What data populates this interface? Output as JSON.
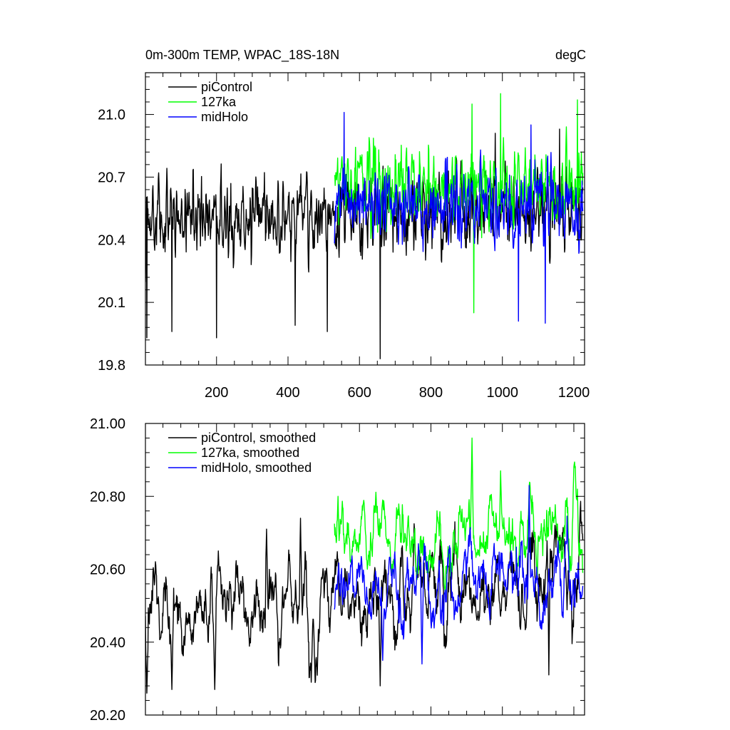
{
  "colors": {
    "piControl": "#000000",
    "127ka": "#00ff00",
    "midHolo": "#0000ff",
    "frame": "#000000",
    "background": "#ffffff"
  },
  "chart_data": [
    {
      "type": "line",
      "title_left": "0m-300m TEMP, WPAC_18S-18N",
      "title_right": "degC",
      "xlabel": "",
      "ylabel": "",
      "xlim": [
        1,
        1230
      ],
      "ylim": [
        19.8,
        21.2
      ],
      "xticks": [
        200,
        400,
        600,
        800,
        1000,
        1200
      ],
      "xtick_labels": [
        "200",
        "400",
        "600",
        "800",
        "1000",
        "1200"
      ],
      "yticks": [
        19.8,
        20.1,
        20.4,
        20.7,
        21.0
      ],
      "ytick_labels": [
        "19.8",
        "20.1",
        "20.4",
        "20.7",
        "21.0"
      ],
      "grid": false,
      "legend_position": "top-left",
      "series": [
        {
          "name": "piControl",
          "color_key": "piControl",
          "x_start": 1,
          "x_end": 1225,
          "mean": 20.5,
          "trend_per_year": 5e-05,
          "noise_sd": 0.17,
          "features": [
            {
              "x": 5,
              "y": 19.93
            },
            {
              "x": 75,
              "y": 19.96
            },
            {
              "x": 200,
              "y": 19.93
            },
            {
              "x": 420,
              "y": 19.99
            },
            {
              "x": 510,
              "y": 19.96
            },
            {
              "x": 658,
              "y": 19.83
            },
            {
              "x": 980,
              "y": 20.91
            },
            {
              "x": 1160,
              "y": 20.93
            }
          ]
        },
        {
          "name": "127ka",
          "color_key": "127ka",
          "x_start": 530,
          "x_end": 1225,
          "mean": 20.66,
          "trend_per_year": 0.0,
          "noise_sd": 0.16,
          "features": [
            {
              "x": 995,
              "y": 21.1
            },
            {
              "x": 1210,
              "y": 21.07
            },
            {
              "x": 915,
              "y": 21.05
            },
            {
              "x": 920,
              "y": 20.05
            }
          ]
        },
        {
          "name": "midHolo",
          "color_key": "midHolo",
          "x_start": 530,
          "x_end": 1225,
          "mean": 20.56,
          "trend_per_year": 0.0,
          "noise_sd": 0.16,
          "features": [
            {
              "x": 557,
              "y": 21.01
            },
            {
              "x": 1080,
              "y": 20.95
            },
            {
              "x": 1045,
              "y": 20.01
            },
            {
              "x": 1120,
              "y": 20.0
            }
          ]
        }
      ]
    },
    {
      "type": "line",
      "title_left": "",
      "title_right": "",
      "xlabel": "",
      "ylabel": "",
      "xlim": [
        1,
        1230
      ],
      "ylim": [
        20.2,
        21.0
      ],
      "xticks": [
        200,
        400,
        600,
        800,
        1000,
        1200
      ],
      "xtick_labels": [],
      "yticks": [
        20.2,
        20.4,
        20.6,
        20.8,
        21.0
      ],
      "ytick_labels": [
        "20.20",
        "20.40",
        "20.60",
        "20.80",
        "21.00"
      ],
      "grid": false,
      "legend_position": "top-left",
      "series": [
        {
          "name": "piControl, smoothed",
          "color_key": "piControl",
          "x_start": 1,
          "x_end": 1225,
          "mean": 20.49,
          "trend_per_year": 9e-05,
          "noise_sd": 0.07,
          "features": [
            {
              "x": 5,
              "y": 20.26
            },
            {
              "x": 75,
              "y": 20.27
            },
            {
              "x": 195,
              "y": 20.27
            },
            {
              "x": 340,
              "y": 20.71
            },
            {
              "x": 435,
              "y": 20.74
            },
            {
              "x": 465,
              "y": 20.29
            },
            {
              "x": 658,
              "y": 20.28
            },
            {
              "x": 1130,
              "y": 20.31
            }
          ]
        },
        {
          "name": "127ka, smoothed",
          "color_key": "127ka",
          "x_start": 530,
          "x_end": 1225,
          "mean": 20.66,
          "trend_per_year": 6e-05,
          "noise_sd": 0.06,
          "features": [
            {
              "x": 915,
              "y": 20.96
            },
            {
              "x": 995,
              "y": 20.87
            },
            {
              "x": 540,
              "y": 20.8
            },
            {
              "x": 1210,
              "y": 20.82
            }
          ]
        },
        {
          "name": "midHolo, smoothed",
          "color_key": "midHolo",
          "x_start": 530,
          "x_end": 1225,
          "mean": 20.56,
          "trend_per_year": 2e-05,
          "noise_sd": 0.06,
          "features": [
            {
              "x": 1075,
              "y": 20.83
            },
            {
              "x": 775,
              "y": 20.34
            },
            {
              "x": 665,
              "y": 20.35
            }
          ]
        }
      ]
    }
  ]
}
